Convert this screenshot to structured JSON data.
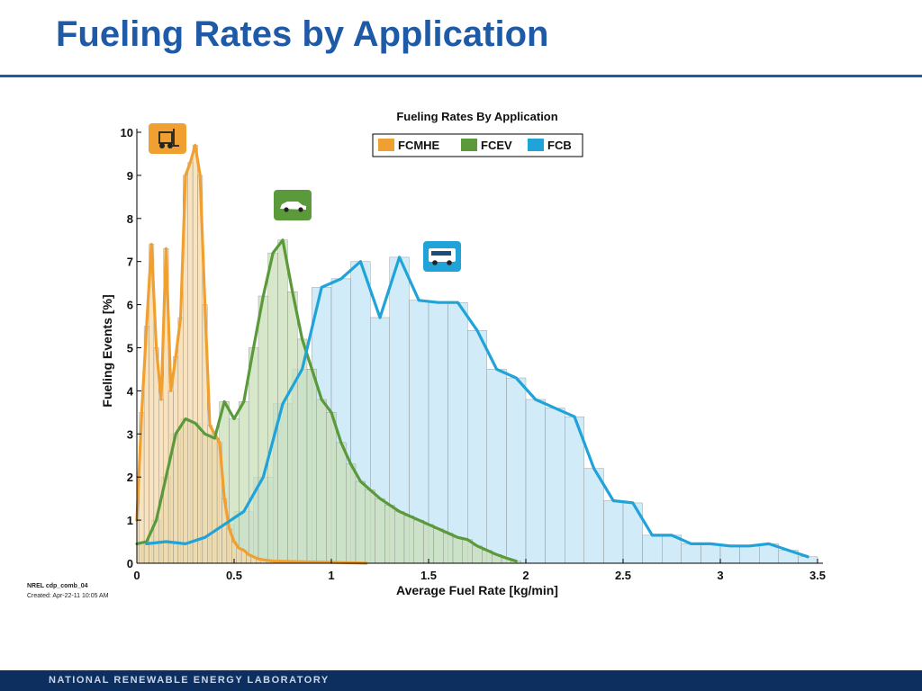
{
  "slide": {
    "title": "Fueling Rates by Application",
    "footer": "NATIONAL RENEWABLE ENERGY LABORATORY",
    "chart_id": "NREL cdp_comb_04",
    "created": "Created: Apr-22-11 10:05 AM"
  },
  "icons": {
    "fcmhe": "forklift-icon",
    "fcev": "car-icon",
    "fcb": "bus-icon"
  },
  "chart_data": {
    "type": "bar",
    "title": "Fueling Rates By Application",
    "xlabel": "Average Fuel Rate [kg/min]",
    "ylabel": "Fueling Events [%]",
    "xlim": [
      0,
      3.5
    ],
    "ylim": [
      0,
      10
    ],
    "xticks": [
      "0",
      "0.5",
      "1",
      "1.5",
      "2",
      "2.5",
      "3",
      "3.5"
    ],
    "yticks": [
      "0",
      "1",
      "2",
      "3",
      "4",
      "5",
      "6",
      "7",
      "8",
      "9",
      "10"
    ],
    "grid": false,
    "legend_position": "top-center",
    "series": [
      {
        "name": "FCMHE",
        "color": "#f0a030",
        "fill": "#f7d9a8",
        "bin_width": 0.025,
        "x": [
          0.0,
          0.025,
          0.05,
          0.075,
          0.1,
          0.125,
          0.15,
          0.175,
          0.2,
          0.225,
          0.25,
          0.275,
          0.3,
          0.325,
          0.35,
          0.375,
          0.4,
          0.425,
          0.45,
          0.475,
          0.5,
          0.525,
          0.55,
          0.575,
          0.6,
          0.625,
          0.65,
          0.7,
          0.8,
          0.9,
          1.0,
          1.1,
          1.18
        ],
        "y": [
          1.0,
          3.5,
          5.5,
          7.4,
          5.0,
          3.8,
          7.3,
          4.0,
          4.8,
          5.7,
          9.0,
          9.3,
          9.7,
          9.0,
          6.0,
          3.2,
          3.0,
          2.8,
          1.5,
          0.8,
          0.5,
          0.35,
          0.3,
          0.2,
          0.15,
          0.1,
          0.08,
          0.05,
          0.04,
          0.03,
          0.02,
          0.01,
          0.0
        ]
      },
      {
        "name": "FCEV",
        "color": "#5a9a3a",
        "fill": "#c9dfb8",
        "bin_width": 0.05,
        "x": [
          0.0,
          0.05,
          0.1,
          0.15,
          0.2,
          0.25,
          0.3,
          0.35,
          0.4,
          0.45,
          0.5,
          0.55,
          0.6,
          0.65,
          0.7,
          0.75,
          0.8,
          0.85,
          0.9,
          0.95,
          1.0,
          1.05,
          1.1,
          1.15,
          1.2,
          1.25,
          1.3,
          1.35,
          1.4,
          1.45,
          1.5,
          1.55,
          1.6,
          1.65,
          1.7,
          1.75,
          1.8,
          1.85,
          1.9,
          1.95
        ],
        "y": [
          0.45,
          0.5,
          1.0,
          2.0,
          3.0,
          3.35,
          3.25,
          3.0,
          2.9,
          3.75,
          3.35,
          3.75,
          5.0,
          6.2,
          7.2,
          7.5,
          6.3,
          5.2,
          4.5,
          3.8,
          3.5,
          2.8,
          2.3,
          1.9,
          1.7,
          1.5,
          1.35,
          1.2,
          1.1,
          1.0,
          0.9,
          0.8,
          0.7,
          0.6,
          0.55,
          0.4,
          0.3,
          0.2,
          0.12,
          0.05
        ]
      },
      {
        "name": "FCB",
        "color": "#1fa3d9",
        "fill": "#c2e6f6",
        "bin_width": 0.1,
        "x": [
          0.05,
          0.15,
          0.25,
          0.35,
          0.45,
          0.55,
          0.65,
          0.75,
          0.85,
          0.95,
          1.05,
          1.15,
          1.25,
          1.35,
          1.45,
          1.55,
          1.65,
          1.75,
          1.85,
          1.95,
          2.05,
          2.15,
          2.25,
          2.35,
          2.45,
          2.55,
          2.65,
          2.75,
          2.85,
          2.95,
          3.05,
          3.15,
          3.25,
          3.35,
          3.45
        ],
        "y": [
          0.45,
          0.5,
          0.45,
          0.6,
          0.9,
          1.2,
          2.0,
          3.7,
          4.5,
          6.4,
          6.6,
          7.0,
          5.7,
          7.1,
          6.1,
          6.05,
          6.05,
          5.4,
          4.5,
          4.3,
          3.8,
          3.6,
          3.4,
          2.2,
          1.45,
          1.4,
          0.65,
          0.65,
          0.45,
          0.45,
          0.4,
          0.4,
          0.45,
          0.3,
          0.15
        ]
      }
    ]
  }
}
